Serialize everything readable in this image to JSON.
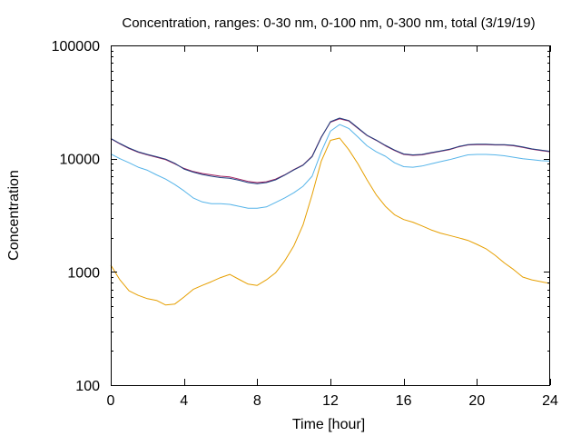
{
  "chart_data": {
    "type": "line",
    "title": "Concentration, ranges: 0-30 nm, 0-100 nm, 0-300 nm, total (3/19/19)",
    "xlabel": "Time [hour]",
    "ylabel": "Concentration",
    "xlim": [
      0,
      24
    ],
    "ylim": [
      100,
      100000
    ],
    "y_scale": "log",
    "grid": false,
    "x_ticks": [
      0,
      4,
      8,
      12,
      16,
      20,
      24
    ],
    "x_tick_labels": [
      "0",
      "4",
      "8",
      "12",
      "16",
      "20",
      "24"
    ],
    "y_ticks": [
      100,
      1000,
      10000,
      100000
    ],
    "y_tick_labels": [
      "100",
      "1000",
      "10000",
      "100000"
    ],
    "x": [
      0,
      0.5,
      1,
      1.5,
      2,
      2.5,
      3,
      3.5,
      4,
      4.5,
      5,
      5.5,
      6,
      6.5,
      7,
      7.5,
      8,
      8.5,
      9,
      9.5,
      10,
      10.5,
      11,
      11.5,
      12,
      12.5,
      13,
      13.5,
      14,
      14.5,
      15,
      15.5,
      16,
      16.5,
      17,
      17.5,
      18,
      18.5,
      19,
      19.5,
      20,
      20.5,
      21,
      21.5,
      22,
      22.5,
      23,
      23.5,
      24
    ],
    "series": [
      {
        "color": "#e69f00",
        "values": [
          1150,
          850,
          680,
          620,
          580,
          560,
          510,
          520,
          600,
          700,
          760,
          820,
          890,
          950,
          860,
          780,
          760,
          850,
          980,
          1250,
          1700,
          2600,
          4800,
          9500,
          14500,
          15200,
          12000,
          9000,
          6500,
          4800,
          3800,
          3200,
          2900,
          2750,
          2550,
          2350,
          2200,
          2100,
          2000,
          1900,
          1750,
          1600,
          1400,
          1200,
          1050,
          900,
          850,
          820,
          790
        ]
      },
      {
        "color": "#56b4e9",
        "values": [
          11000,
          10000,
          9200,
          8400,
          7900,
          7200,
          6600,
          5900,
          5200,
          4500,
          4150,
          4000,
          4000,
          3950,
          3800,
          3650,
          3650,
          3750,
          4100,
          4500,
          5000,
          5700,
          7000,
          11500,
          17500,
          20000,
          18500,
          15500,
          13000,
          11500,
          10500,
          9200,
          8500,
          8400,
          8600,
          9000,
          9400,
          9800,
          10300,
          10800,
          10900,
          10900,
          10800,
          10600,
          10300,
          10000,
          9800,
          9600,
          9500
        ]
      },
      {
        "color": "#a0205f",
        "values": [
          15000,
          13500,
          12300,
          11400,
          10800,
          10300,
          9800,
          9000,
          8200,
          7700,
          7400,
          7200,
          7000,
          6900,
          6600,
          6300,
          6150,
          6250,
          6600,
          7200,
          8000,
          8800,
          10500,
          15500,
          21000,
          22500,
          21500,
          18500,
          16000,
          14500,
          13000,
          11800,
          10900,
          10700,
          10800,
          11200,
          11600,
          12000,
          12700,
          13200,
          13300,
          13300,
          13200,
          13200,
          13000,
          12600,
          12100,
          11800,
          11500
        ]
      },
      {
        "color": "#1f3f7f",
        "values": [
          15100,
          13600,
          12400,
          11500,
          10900,
          10400,
          9900,
          9100,
          8100,
          7600,
          7250,
          7000,
          6800,
          6700,
          6450,
          6150,
          6000,
          6150,
          6500,
          7150,
          7950,
          8750,
          10400,
          15400,
          21200,
          22800,
          21700,
          18700,
          16100,
          14600,
          13100,
          11900,
          11000,
          10800,
          10900,
          11300,
          11700,
          12100,
          12800,
          13300,
          13400,
          13400,
          13300,
          13300,
          13100,
          12700,
          12200,
          11900,
          11600
        ]
      }
    ]
  }
}
